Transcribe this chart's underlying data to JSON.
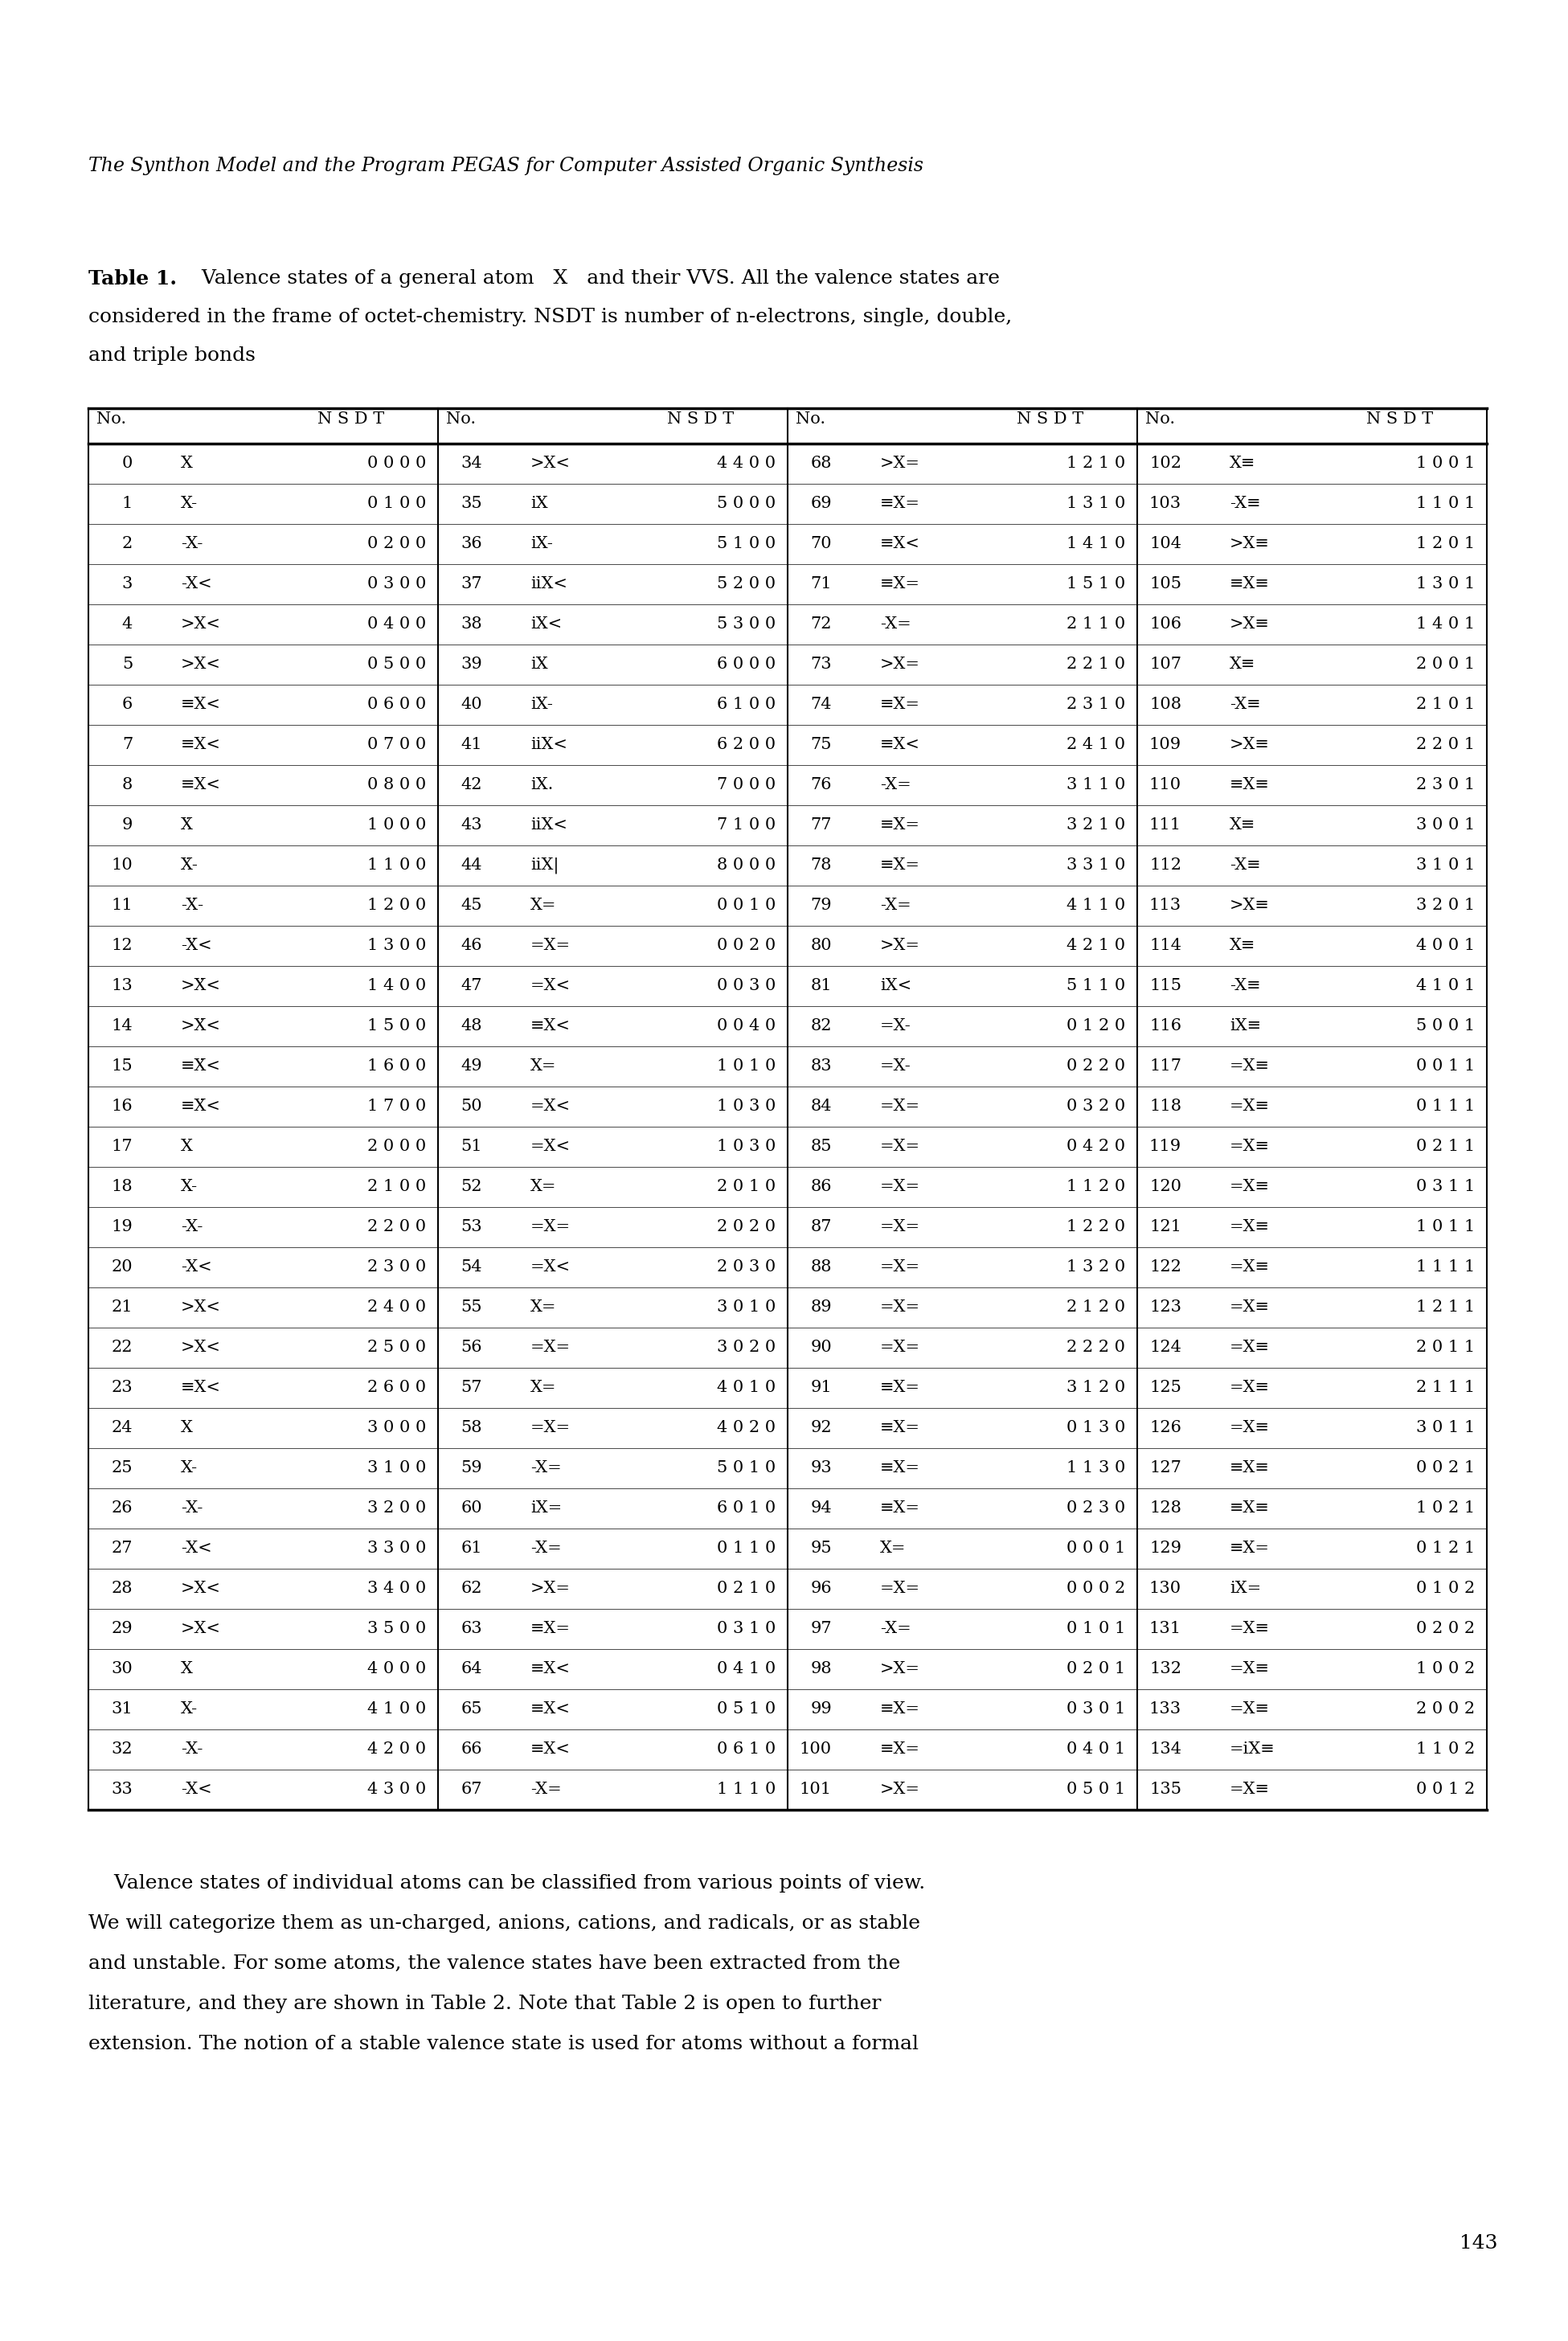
{
  "page_header": "The Synthon Model and the Program PEGAS for Computer Assisted Organic Synthesis",
  "table_caption_line1": "Table 1.  Valence states of a general atom  X  and their VVS. All the valence states are",
  "table_caption_line2": "considered in the frame of octet-chemistry. NSDT is number of n-electrons, single, double,",
  "table_caption_line3": "and triple bonds",
  "page_number": "143",
  "footer_lines": [
    "    Valence states of individual atoms can be classified from various points of view.",
    "We will categorize them as un-charged, anions, cations, and radicals, or as stable",
    "and unstable. For some atoms, the valence states have been extracted from the",
    "literature, and they are shown in Table 2. Note that Table 2 is open to further",
    "extension. The notion of a stable valence state is used for atoms without a formal"
  ],
  "rows": [
    [
      "0",
      "X",
      "0 0 0 0",
      "34",
      ">X<",
      "4 4 0 0",
      "68",
      ">X=",
      "1 2 1 0",
      "102",
      "X≡",
      "1 0 0 1"
    ],
    [
      "1",
      "X-",
      "0 1 0 0",
      "35",
      "iX",
      "5 0 0 0",
      "69",
      "≡X=",
      "1 3 1 0",
      "103",
      "-X≡",
      "1 1 0 1"
    ],
    [
      "2",
      "-X-",
      "0 2 0 0",
      "36",
      "iX-",
      "5 1 0 0",
      "70",
      "≡X<",
      "1 4 1 0",
      "104",
      ">X≡",
      "1 2 0 1"
    ],
    [
      "3",
      "-X<",
      "0 3 0 0",
      "37",
      "iiX<",
      "5 2 0 0",
      "71",
      "≡X=",
      "1 5 1 0",
      "105",
      "≡X≡",
      "1 3 0 1"
    ],
    [
      "4",
      ">X<",
      "0 4 0 0",
      "38",
      "iX<",
      "5 3 0 0",
      "72",
      "-X=",
      "2 1 1 0",
      "106",
      ">X≡",
      "1 4 0 1"
    ],
    [
      "5",
      ">X<",
      "0 5 0 0",
      "39",
      "iX",
      "6 0 0 0",
      "73",
      ">X=",
      "2 2 1 0",
      "107",
      "X≡",
      "2 0 0 1"
    ],
    [
      "6",
      "≡X<",
      "0 6 0 0",
      "40",
      "iX-",
      "6 1 0 0",
      "74",
      "≡X=",
      "2 3 1 0",
      "108",
      "-X≡",
      "2 1 0 1"
    ],
    [
      "7",
      "≡X<",
      "0 7 0 0",
      "41",
      "iiX<",
      "6 2 0 0",
      "75",
      "≡X<",
      "2 4 1 0",
      "109",
      ">X≡",
      "2 2 0 1"
    ],
    [
      "8",
      "≡X<",
      "0 8 0 0",
      "42",
      "iX.",
      "7 0 0 0",
      "76",
      "-X=",
      "3 1 1 0",
      "110",
      "≡X≡",
      "2 3 0 1"
    ],
    [
      "9",
      "Ẋ",
      "1 0 0 0",
      "43",
      "iiX<",
      "7 1 0 0",
      "77",
      "≡X=",
      "3 2 1 0",
      "111",
      "X≡",
      "3 0 0 1"
    ],
    [
      "10",
      "Ẋ-",
      "1 1 0 0",
      "44",
      "iiX|",
      "8 0 0 0",
      "78",
      "≡X=",
      "3 3 1 0",
      "112",
      "-X≡",
      "3 1 0 1"
    ],
    [
      "11",
      "-Ẋ-",
      "1 2 0 0",
      "45",
      "X=",
      "0 0 1 0",
      "79",
      "-X=",
      "4 1 1 0",
      "113",
      ">X≡",
      "3 2 0 1"
    ],
    [
      "12",
      "-Ẋ<",
      "1 3 0 0",
      "46",
      "=X=",
      "0 0 2 0",
      "80",
      ">X=",
      "4 2 1 0",
      "114",
      "X≡",
      "4 0 0 1"
    ],
    [
      "13",
      ">Ẋ<",
      "1 4 0 0",
      "47",
      "=X<",
      "0 0 3 0",
      "81",
      "iX<",
      "5 1 1 0",
      "115",
      "-X≡",
      "4 1 0 1"
    ],
    [
      "14",
      ">Ẋ<",
      "1 5 0 0",
      "48",
      "≡X<",
      "0 0 4 0",
      "82",
      "=X-",
      "0 1 2 0",
      "116",
      "iX≡",
      "5 0 0 1"
    ],
    [
      "15",
      "≡Ẋ<",
      "1 6 0 0",
      "49",
      "X=",
      "1 0 1 0",
      "83",
      "=X-",
      "0 2 2 0",
      "117",
      "=X≡",
      "0 0 1 1"
    ],
    [
      "16",
      "≡Ẋ<",
      "1 7 0 0",
      "50",
      "=X<",
      "1 0 3 0",
      "84",
      "=X=",
      "0 3 2 0",
      "118",
      "=X≡",
      "0 1 1 1"
    ],
    [
      "17",
      "X",
      "2 0 0 0",
      "51",
      "=X<",
      "1 0 3 0",
      "85",
      "=X=",
      "0 4 2 0",
      "119",
      "=X≡",
      "0 2 1 1"
    ],
    [
      "18",
      "X-",
      "2 1 0 0",
      "52",
      "X=",
      "2 0 1 0",
      "86",
      "=X=",
      "1 1 2 0",
      "120",
      "=X≡",
      "0 3 1 1"
    ],
    [
      "19",
      "-X-",
      "2 2 0 0",
      "53",
      "=X=",
      "2 0 2 0",
      "87",
      "=X=",
      "1 2 2 0",
      "121",
      "=X≡",
      "1 0 1 1"
    ],
    [
      "20",
      "-X<",
      "2 3 0 0",
      "54",
      "=X<",
      "2 0 3 0",
      "88",
      "=X=",
      "1 3 2 0",
      "122",
      "=X≡",
      "1 1 1 1"
    ],
    [
      "21",
      ">X<",
      "2 4 0 0",
      "55",
      "X=",
      "3 0 1 0",
      "89",
      "=X=",
      "2 1 2 0",
      "123",
      "=X≡",
      "1 2 1 1"
    ],
    [
      "22",
      ">X<",
      "2 5 0 0",
      "56",
      "=X=",
      "3 0 2 0",
      "90",
      "=X=",
      "2 2 2 0",
      "124",
      "=X≡",
      "2 0 1 1"
    ],
    [
      "23",
      "≡X<",
      "2 6 0 0",
      "57",
      "X=",
      "4 0 1 0",
      "91",
      "≡X=",
      "3 1 2 0",
      "125",
      "=X≡",
      "2 1 1 1"
    ],
    [
      "24",
      "X",
      "3 0 0 0",
      "58",
      "=X=",
      "4 0 2 0",
      "92",
      "≡X=",
      "0 1 3 0",
      "126",
      "=X≡",
      "3 0 1 1"
    ],
    [
      "25",
      "X-",
      "3 1 0 0",
      "59",
      "-X=",
      "5 0 1 0",
      "93",
      "≡X=",
      "1 1 3 0",
      "127",
      "≡X≡",
      "0 0 2 1"
    ],
    [
      "26",
      "-X-",
      "3 2 0 0",
      "60",
      "iX=",
      "6 0 1 0",
      "94",
      "≡X=",
      "0 2 3 0",
      "128",
      "≡X≡",
      "1 0 2 1"
    ],
    [
      "27",
      "-X<",
      "3 3 0 0",
      "61",
      "-X=",
      "0 1 1 0",
      "95",
      "X=",
      "0 0 0 1",
      "129",
      "≡X=",
      "0 1 2 1"
    ],
    [
      "28",
      ">X<",
      "3 4 0 0",
      "62",
      ">X=",
      "0 2 1 0",
      "96",
      "=X=",
      "0 0 0 2",
      "130",
      "iX=",
      "0 1 0 2"
    ],
    [
      "29",
      ">X<",
      "3 5 0 0",
      "63",
      "≡X=",
      "0 3 1 0",
      "97",
      "-X=",
      "0 1 0 1",
      "131",
      "=X≡",
      "0 2 0 2"
    ],
    [
      "30",
      "X",
      "4 0 0 0",
      "64",
      "≡X<",
      "0 4 1 0",
      "98",
      ">X=",
      "0 2 0 1",
      "132",
      "=X≡",
      "1 0 0 2"
    ],
    [
      "31",
      "X-",
      "4 1 0 0",
      "65",
      "≡X<",
      "0 5 1 0",
      "99",
      "≡X=",
      "0 3 0 1",
      "133",
      "=X≡",
      "2 0 0 2"
    ],
    [
      "32",
      "-X-",
      "4 2 0 0",
      "66",
      "≡X<",
      "0 6 1 0",
      "100",
      "≡X=",
      "0 4 0 1",
      "134",
      "=iX≡",
      "1 1 0 2"
    ],
    [
      "33",
      "-X<",
      "4 3 0 0",
      "67",
      "-X=",
      "1 1 1 0",
      "101",
      ">X=",
      "0 5 0 1",
      "135",
      "=X≡",
      "0 0 1 2"
    ]
  ]
}
